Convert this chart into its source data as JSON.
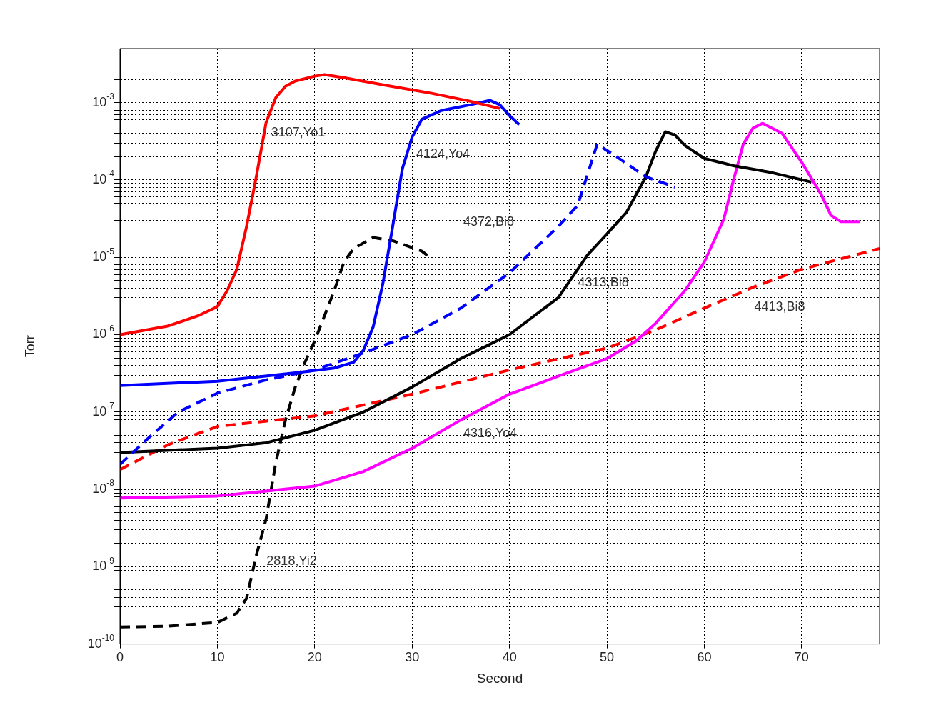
{
  "chart_data": {
    "type": "line",
    "xlabel": "Second",
    "ylabel": "Torr",
    "log": "y",
    "grid": true,
    "legend": false,
    "marker": "none",
    "xlim": [
      0,
      78
    ],
    "xticks": [
      0,
      10,
      20,
      30,
      40,
      50,
      60,
      70
    ],
    "ylim": [
      1e-10,
      0.005
    ],
    "yticks": [
      {
        "value": 1e-10,
        "label": "10$^{-10}$"
      },
      {
        "value": 2e-10,
        "label": null
      },
      {
        "value": 3e-10,
        "label": null
      },
      {
        "value": 4e-10,
        "label": null
      },
      {
        "value": 5e-10,
        "label": null
      },
      {
        "value": 6e-10,
        "label": null
      },
      {
        "value": 7e-10,
        "label": null
      },
      {
        "value": 8e-10,
        "label": null
      },
      {
        "value": 9e-10,
        "label": null
      },
      {
        "value": 1e-09,
        "label": "10$^{-9}$"
      },
      {
        "value": 2e-09,
        "label": null
      },
      {
        "value": 3e-09,
        "label": null
      },
      {
        "value": 4e-09,
        "label": null
      },
      {
        "value": 5e-09,
        "label": null
      },
      {
        "value": 6e-09,
        "label": null
      },
      {
        "value": 7e-09,
        "label": null
      },
      {
        "value": 8e-09,
        "label": null
      },
      {
        "value": 9e-09,
        "label": null
      },
      {
        "value": 1e-08,
        "label": "10$^{-8}$"
      },
      {
        "value": 2e-08,
        "label": null
      },
      {
        "value": 3e-08,
        "label": null
      },
      {
        "value": 4e-08,
        "label": null
      },
      {
        "value": 5e-08,
        "label": null
      },
      {
        "value": 6e-08,
        "label": null
      },
      {
        "value": 7e-08,
        "label": null
      },
      {
        "value": 8e-08,
        "label": null
      },
      {
        "value": 9e-08,
        "label": null
      },
      {
        "value": 1e-07,
        "label": "10$^{-7}$"
      },
      {
        "value": 2e-07,
        "label": null
      },
      {
        "value": 3e-07,
        "label": null
      },
      {
        "value": 4e-07,
        "label": null
      },
      {
        "value": 5e-07,
        "label": null
      },
      {
        "value": 6e-07,
        "label": null
      },
      {
        "value": 7e-07,
        "label": null
      },
      {
        "value": 8e-07,
        "label": null
      },
      {
        "value": 9e-07,
        "label": null
      },
      {
        "value": 1e-06,
        "label": "10$^{-6}$"
      },
      {
        "value": 2e-06,
        "label": null
      },
      {
        "value": 3e-06,
        "label": null
      },
      {
        "value": 4e-06,
        "label": null
      },
      {
        "value": 5e-06,
        "label": null
      },
      {
        "value": 6e-06,
        "label": null
      },
      {
        "value": 7e-06,
        "label": null
      },
      {
        "value": 8e-06,
        "label": null
      },
      {
        "value": 9e-06,
        "label": null
      },
      {
        "value": 1e-05,
        "label": "10$^{-5}$"
      },
      {
        "value": 2e-05,
        "label": null
      },
      {
        "value": 3e-05,
        "label": null
      },
      {
        "value": 4e-05,
        "label": null
      },
      {
        "value": 5e-05,
        "label": null
      },
      {
        "value": 6e-05,
        "label": null
      },
      {
        "value": 7e-05,
        "label": null
      },
      {
        "value": 8e-05,
        "label": null
      },
      {
        "value": 9e-05,
        "label": null
      },
      {
        "value": 0.0001,
        "label": "10$^{-4}$"
      },
      {
        "value": 0.0002,
        "label": null
      },
      {
        "value": 0.0003,
        "label": null
      },
      {
        "value": 0.0004,
        "label": null
      },
      {
        "value": 0.0005,
        "label": null
      },
      {
        "value": 0.0006,
        "label": null
      },
      {
        "value": 0.0007,
        "label": null
      },
      {
        "value": 0.0008,
        "label": null
      },
      {
        "value": 0.0009,
        "label": null
      },
      {
        "value": 0.001,
        "label": "10$^{-3}$"
      },
      {
        "value": 0.002,
        "label": null
      },
      {
        "value": 0.003,
        "label": null
      },
      {
        "value": 0.004,
        "label": null
      }
    ],
    "series": [
      {
        "name": "3107,Yo1",
        "color": "#ff0000",
        "line_style": "solid",
        "x": [
          0,
          5,
          8,
          10,
          11,
          12,
          13,
          14,
          15,
          16,
          17,
          18,
          20,
          21,
          23,
          27,
          32,
          36,
          39
        ],
        "values": [
          1e-06,
          1.3e-06,
          1.75e-06,
          2.3e-06,
          3.7e-06,
          7e-06,
          2.5e-05,
          0.00011,
          0.00055,
          0.00116,
          0.00163,
          0.0019,
          0.0022,
          0.0023,
          0.0021,
          0.0017,
          0.00132,
          0.00104,
          0.00084
        ]
      },
      {
        "name": "4124,Yo4",
        "color": "#0000ff",
        "line_style": "solid",
        "x": [
          0,
          10,
          18,
          22,
          24,
          25,
          26,
          27,
          28,
          29,
          30,
          31,
          33,
          36,
          38,
          39,
          40,
          41
        ],
        "values": [
          2.2e-07,
          2.5e-07,
          3.2e-07,
          3.7e-07,
          4.4e-07,
          6.3e-07,
          1.26e-06,
          4.6e-06,
          2.5e-05,
          0.00014,
          0.00036,
          0.00061,
          0.00079,
          0.00094,
          0.00107,
          0.00094,
          0.00068,
          0.00052
        ]
      },
      {
        "name": "4372,Bi8",
        "color": "#0000ff",
        "line_style": "dashed",
        "x": [
          0,
          3,
          6,
          10,
          15,
          20,
          25,
          30,
          35,
          40,
          45,
          47,
          49,
          51,
          54,
          57
        ],
        "values": [
          2.1e-08,
          4.7e-08,
          1e-07,
          1.75e-07,
          2.6e-07,
          3.5e-07,
          5.8e-07,
          1e-06,
          2.2e-06,
          6.3e-06,
          2.5e-05,
          4.7e-05,
          0.00029,
          0.0002,
          0.00011,
          8.1e-05
        ]
      },
      {
        "name": "4313,Bi8",
        "color": "#000000",
        "line_style": "solid",
        "x": [
          0,
          10,
          15,
          20,
          25,
          30,
          35,
          40,
          45,
          48,
          50,
          52,
          54,
          55,
          56,
          57,
          58,
          60,
          63,
          67,
          71
        ],
        "values": [
          3e-08,
          3.4e-08,
          4e-08,
          5.8e-08,
          1e-07,
          2.1e-07,
          4.9e-07,
          1e-06,
          3e-06,
          1.07e-05,
          2e-05,
          3.8e-05,
          0.00011,
          0.000235,
          0.00042,
          0.00038,
          0.00028,
          0.00019,
          0.000153,
          0.000124,
          9.4e-05
        ]
      },
      {
        "name": "4316,Yo4",
        "color": "#ff00ff",
        "line_style": "solid",
        "x": [
          0,
          10,
          15,
          20,
          25,
          30,
          35,
          40,
          45,
          50,
          53,
          55,
          58,
          60,
          62,
          63,
          64,
          65,
          66,
          68,
          70,
          72,
          73,
          74,
          76
        ],
        "values": [
          7.7e-09,
          8.2e-09,
          9.5e-09,
          1.1e-08,
          1.7e-08,
          3.4e-08,
          7.9e-08,
          1.7e-07,
          2.9e-07,
          4.9e-07,
          8.3e-07,
          1.4e-06,
          3.7e-06,
          8.7e-06,
          3.1e-05,
          0.0001,
          0.00029,
          0.00047,
          0.00054,
          0.0004,
          0.00017,
          6.5e-05,
          3.5e-05,
          2.9e-05,
          2.9e-05
        ]
      },
      {
        "name": "4413,Bi8",
        "color": "#ff0000",
        "line_style": "dashed",
        "x": [
          0,
          5,
          10,
          20,
          30,
          40,
          50,
          55,
          60,
          65,
          70,
          78
        ],
        "values": [
          1.8e-08,
          3.8e-08,
          6.5e-08,
          8.9e-08,
          1.7e-07,
          3.5e-07,
          6.7e-07,
          1.15e-06,
          2.2e-06,
          4.1e-06,
          7e-06,
          1.3e-05
        ]
      },
      {
        "name": "2818,Yi2",
        "color": "#000000",
        "line_style": "dashed",
        "x": [
          0,
          5,
          10,
          12,
          13,
          14,
          15,
          16,
          17,
          18,
          19,
          20,
          21,
          22,
          23,
          24,
          26,
          28,
          31,
          32
        ],
        "values": [
          1.66e-10,
          1.7e-10,
          1.9e-10,
          2.5e-10,
          3.9e-10,
          1.4e-09,
          4.1e-09,
          2.2e-08,
          7.9e-08,
          2.1e-07,
          4.4e-07,
          8.3e-07,
          1.75e-06,
          3.7e-06,
          8.7e-06,
          1.3e-05,
          1.8e-05,
          1.64e-05,
          1.2e-05,
          9.6e-06
        ]
      }
    ]
  }
}
